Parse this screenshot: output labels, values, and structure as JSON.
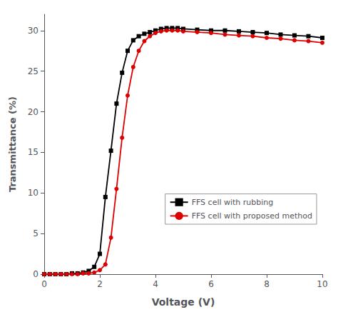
{
  "chart_data": {
    "type": "line",
    "xlabel": "Voltage (V)",
    "ylabel": "Transmittance (%)",
    "x": [
      0,
      0.2,
      0.4,
      0.6,
      0.8,
      1.0,
      1.2,
      1.4,
      1.6,
      1.8,
      2.0,
      2.2,
      2.4,
      2.6,
      2.8,
      3.0,
      3.2,
      3.4,
      3.6,
      3.8,
      4.0,
      4.2,
      4.4,
      4.6,
      4.8,
      5.0,
      5.5,
      6.0,
      6.5,
      7.0,
      7.5,
      8.0,
      8.5,
      9.0,
      9.5,
      10.0
    ],
    "series": [
      {
        "name": "FFS cell with rubbing",
        "color": "#000000",
        "marker": "square",
        "values": [
          0.0,
          0.0,
          0.0,
          0.0,
          0.0,
          0.1,
          0.1,
          0.2,
          0.4,
          0.9,
          2.5,
          9.5,
          15.2,
          21.0,
          24.8,
          27.5,
          28.8,
          29.3,
          29.6,
          29.8,
          30.0,
          30.2,
          30.3,
          30.3,
          30.3,
          30.2,
          30.1,
          30.0,
          30.0,
          29.9,
          29.8,
          29.7,
          29.5,
          29.4,
          29.3,
          29.1
        ]
      },
      {
        "name": "FFS cell with proposed method",
        "color": "#dd0000",
        "marker": "circle",
        "values": [
          0.0,
          0.0,
          0.0,
          0.0,
          0.0,
          0.0,
          0.0,
          0.1,
          0.1,
          0.2,
          0.5,
          1.2,
          4.5,
          10.5,
          16.8,
          22.0,
          25.5,
          27.5,
          28.7,
          29.3,
          29.7,
          29.9,
          30.0,
          30.0,
          30.0,
          29.9,
          29.8,
          29.7,
          29.5,
          29.4,
          29.3,
          29.1,
          29.0,
          28.8,
          28.7,
          28.5
        ]
      }
    ],
    "xlim": [
      0,
      10
    ],
    "ylim": [
      0,
      32
    ],
    "xticks": [
      0,
      2,
      4,
      6,
      8,
      10
    ],
    "yticks": [
      0,
      5,
      10,
      15,
      20,
      25,
      30
    ],
    "grid": false,
    "legend": "lower right"
  }
}
